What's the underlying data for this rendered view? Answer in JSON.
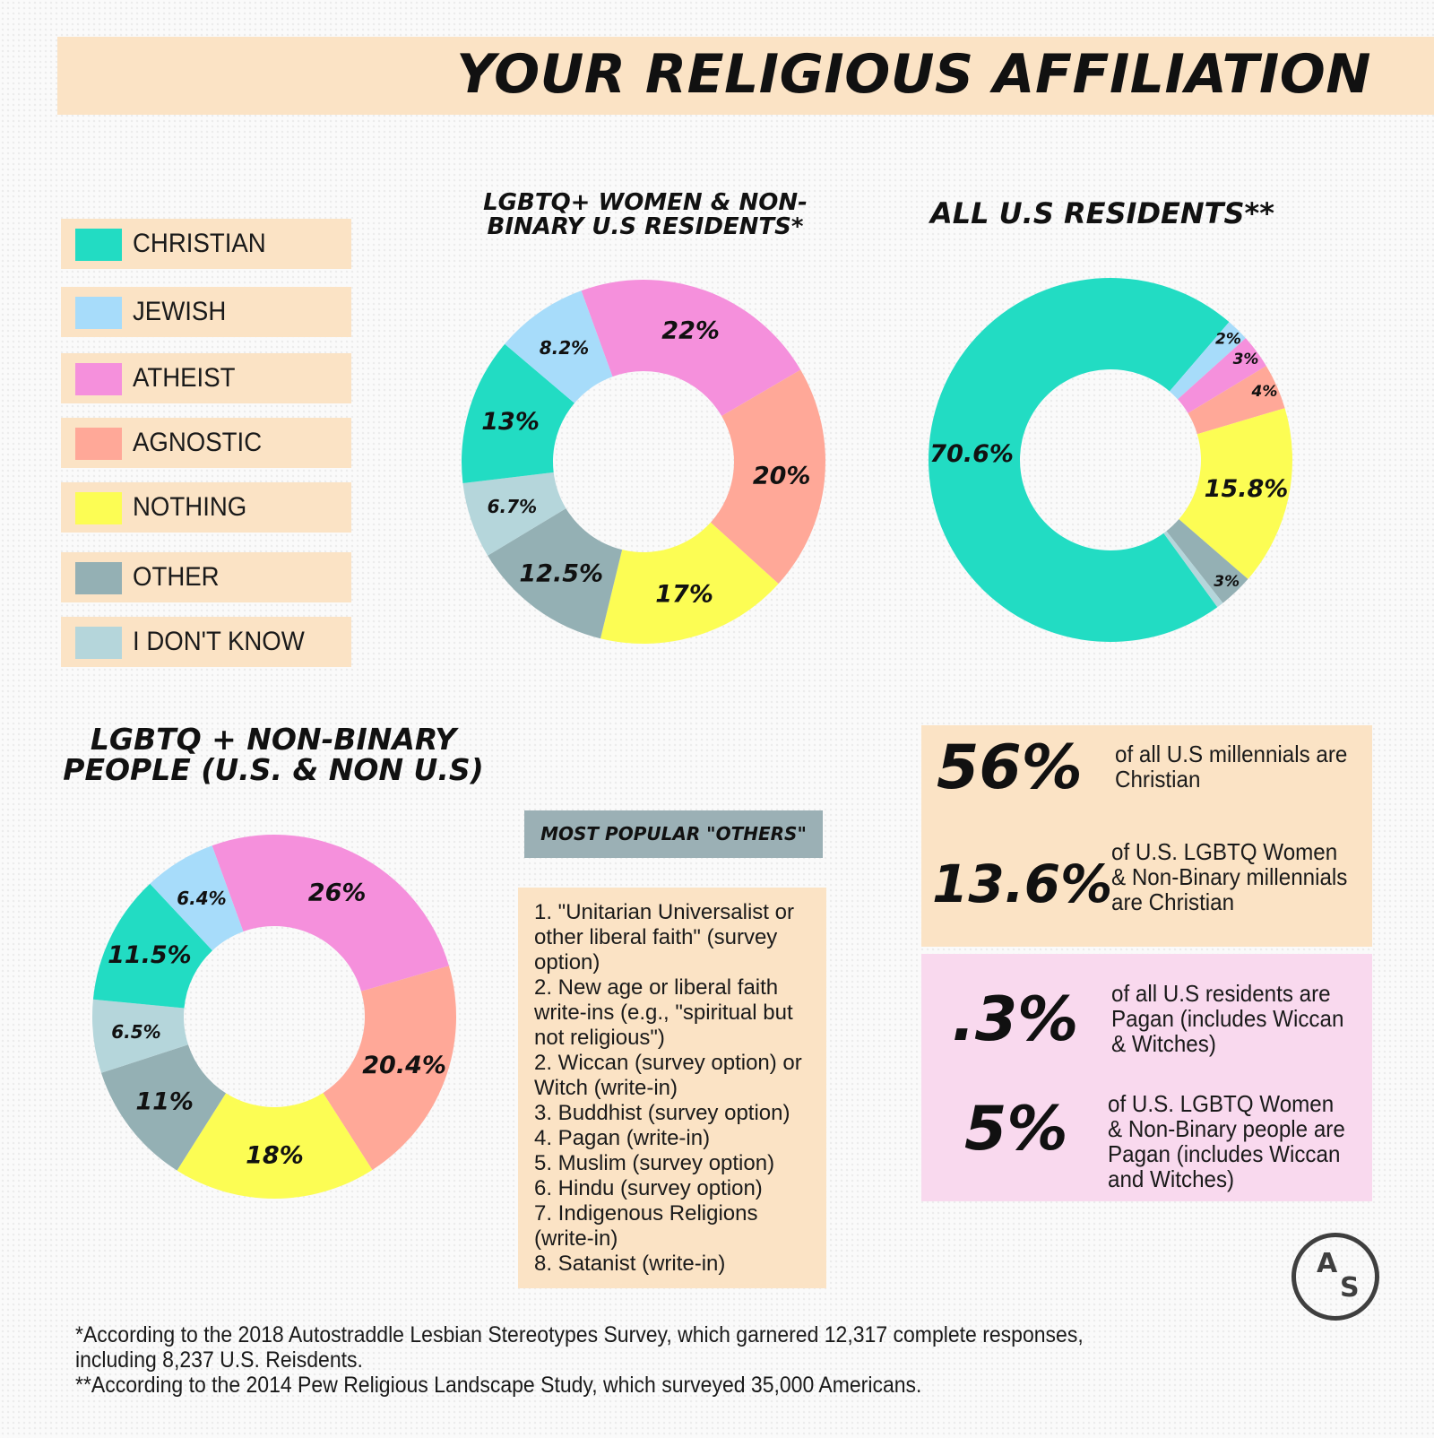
{
  "page_title": "YOUR RELIGIOUS AFFILIATION",
  "colors": {
    "christian": "#22dcc3",
    "jewish": "#a7dcfa",
    "atheist": "#f590dc",
    "agnostic": "#ffa898",
    "nothing": "#fcfd54",
    "other": "#94b0b4",
    "dont_know": "#b5d6db",
    "panel_peach": "#fbe3c5",
    "panel_pink": "#f9d9ee"
  },
  "legend": [
    {
      "label": "CHRISTIAN",
      "color": "#22dcc3"
    },
    {
      "label": "JEWISH",
      "color": "#a7dcfa"
    },
    {
      "label": "ATHEIST",
      "color": "#f590dc"
    },
    {
      "label": "AGNOSTIC",
      "color": "#ffa898"
    },
    {
      "label": "NOTHING",
      "color": "#fcfd54"
    },
    {
      "label": "OTHER",
      "color": "#94b0b4"
    },
    {
      "label": "I DON'T KNOW",
      "color": "#b5d6db"
    }
  ],
  "chart_data": [
    {
      "type": "pie",
      "title_lines": [
        "LGBTQ+ WOMEN & NON-",
        "BINARY U.S RESIDENTS*"
      ],
      "slices": [
        {
          "label": "ATHEIST",
          "value": 22,
          "display": "22%",
          "color": "#f590dc"
        },
        {
          "label": "AGNOSTIC",
          "value": 20,
          "display": "20%",
          "color": "#ffa898"
        },
        {
          "label": "NOTHING",
          "value": 17,
          "display": "17%",
          "color": "#fcfd54"
        },
        {
          "label": "OTHER",
          "value": 12.5,
          "display": "12.5%",
          "color": "#94b0b4"
        },
        {
          "label": "I DON'T KNOW",
          "value": 6.7,
          "display": "6.7%",
          "color": "#b5d6db"
        },
        {
          "label": "CHRISTIAN",
          "value": 13,
          "display": "13%",
          "color": "#22dcc3"
        },
        {
          "label": "JEWISH",
          "value": 8.2,
          "display": "8.2%",
          "color": "#a7dcfa"
        }
      ]
    },
    {
      "type": "pie",
      "title_lines": [
        "ALL U.S RESIDENTS**"
      ],
      "slices": [
        {
          "label": "CHRISTIAN",
          "value": 70.6,
          "display": "70.6%",
          "color": "#22dcc3"
        },
        {
          "label": "JEWISH",
          "value": 2,
          "display": "2%",
          "color": "#a7dcfa"
        },
        {
          "label": "ATHEIST",
          "value": 3,
          "display": "3%",
          "color": "#f590dc"
        },
        {
          "label": "AGNOSTIC",
          "value": 4,
          "display": "4%",
          "color": "#ffa898"
        },
        {
          "label": "NOTHING",
          "value": 15.8,
          "display": "15.8%",
          "color": "#fcfd54"
        },
        {
          "label": "OTHER",
          "value": 3,
          "display": "3%",
          "color": "#94b0b4"
        },
        {
          "label": "I DON'T KNOW",
          "value": 0.6,
          "display": "",
          "color": "#b5d6db"
        }
      ]
    },
    {
      "type": "pie",
      "title_lines": [
        "LGBTQ + NON-BINARY",
        "PEOPLE (U.S. & NON U.S)"
      ],
      "slices": [
        {
          "label": "ATHEIST",
          "value": 26,
          "display": "26%",
          "color": "#f590dc"
        },
        {
          "label": "AGNOSTIC",
          "value": 20.4,
          "display": "20.4%",
          "color": "#ffa898"
        },
        {
          "label": "NOTHING",
          "value": 18,
          "display": "18%",
          "color": "#fcfd54"
        },
        {
          "label": "OTHER",
          "value": 11,
          "display": "11%",
          "color": "#94b0b4"
        },
        {
          "label": "I DON'T KNOW",
          "value": 6.5,
          "display": "6.5%",
          "color": "#b5d6db"
        },
        {
          "label": "CHRISTIAN",
          "value": 11.5,
          "display": "11.5%",
          "color": "#22dcc3"
        },
        {
          "label": "JEWISH",
          "value": 6.4,
          "display": "6.4%",
          "color": "#a7dcfa"
        }
      ]
    }
  ],
  "others": {
    "heading": "MOST POPULAR \"OTHERS\"",
    "items": [
      "1. \"Unitarian Universalist or other liberal faith\" (survey option)",
      "2. New age or liberal faith write-ins (e.g., \"spiritual but not religious\")",
      "2. Wiccan (survey option) or Witch (write-in)",
      "3. Buddhist (survey option)",
      "4. Pagan (write-in)",
      "5. Muslim (survey option)",
      "6. Hindu (survey option)",
      "7. Indigenous Religions (write-in)",
      "8. Satanist (write-in)"
    ]
  },
  "stats": [
    {
      "value": "56%",
      "text": "of all U.S millennials are Christian"
    },
    {
      "value": "13.6%",
      "text": "of U.S. LGBTQ Women & Non-Binary millennials are Christian"
    },
    {
      "value": ".3%",
      "text": "of all U.S residents are Pagan (includes Wiccan & Witches)"
    },
    {
      "value": "5%",
      "text": "of U.S. LGBTQ Women & Non-Binary people are Pagan (includes Wiccan and Witches)"
    }
  ],
  "logo": {
    "letter_a": "A",
    "letter_s": "S"
  },
  "footnotes": [
    "*According to the 2018 Autostraddle Lesbian Stereotypes Survey, which garnered 12,317 complete responses, including 8,237 U.S. Reisdents.",
    "**According to the 2014 Pew Religious Landscape Study, which surveyed 35,000 Americans."
  ]
}
